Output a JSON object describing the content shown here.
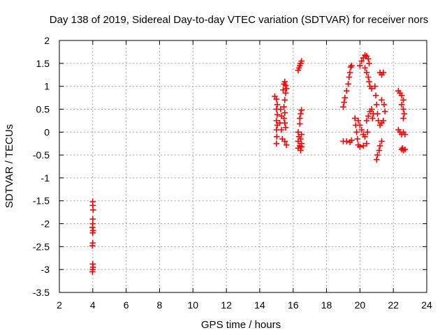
{
  "chart_data": {
    "type": "scatter",
    "title": "Day 138 of 2019, Sidereal Day-to-day VTEC variation (SDTVAR) for receiver nors",
    "xlabel": "GPS time / hours",
    "ylabel": "SDTVAR / TECUs",
    "xlim": [
      2,
      24
    ],
    "ylim": [
      -3.5,
      2
    ],
    "x_ticks": [
      "2",
      "4",
      "6",
      "8",
      "10",
      "12",
      "14",
      "16",
      "18",
      "20",
      "22",
      "24"
    ],
    "y_ticks": [
      "2",
      "1.5",
      "1",
      "0.5",
      "0",
      "-0.5",
      "-1",
      "-1.5",
      "-2",
      "-2.5",
      "-3",
      "-3.5"
    ],
    "grid": true,
    "marker": "plus",
    "color": "#ff0000",
    "series": [
      {
        "name": "SDTVAR",
        "points": [
          [
            4.0,
            -1.52
          ],
          [
            4.0,
            -1.6
          ],
          [
            4.02,
            -1.7
          ],
          [
            4.0,
            -1.9
          ],
          [
            4.0,
            -2.0
          ],
          [
            3.98,
            -2.08
          ],
          [
            4.02,
            -2.15
          ],
          [
            4.0,
            -2.2
          ],
          [
            4.0,
            -2.42
          ],
          [
            3.98,
            -2.48
          ],
          [
            4.0,
            -2.88
          ],
          [
            4.02,
            -2.95
          ],
          [
            4.0,
            -3.0
          ],
          [
            3.98,
            -3.05
          ],
          [
            14.9,
            0.78
          ],
          [
            15.0,
            0.72
          ],
          [
            15.05,
            0.6
          ],
          [
            15.0,
            0.5
          ],
          [
            15.05,
            0.38
          ],
          [
            15.0,
            0.25
          ],
          [
            15.05,
            0.15
          ],
          [
            15.0,
            0.05
          ],
          [
            15.02,
            -0.1
          ],
          [
            15.0,
            -0.25
          ],
          [
            15.25,
            0.5
          ],
          [
            15.3,
            0.35
          ],
          [
            15.2,
            0.2
          ],
          [
            15.3,
            0.05
          ],
          [
            15.35,
            -0.15
          ],
          [
            15.5,
            -0.2
          ],
          [
            15.6,
            -0.28
          ],
          [
            15.4,
            0.92
          ],
          [
            15.45,
            1.05
          ],
          [
            15.5,
            1.1
          ],
          [
            15.55,
            1.02
          ],
          [
            15.6,
            0.95
          ],
          [
            15.55,
            0.85
          ],
          [
            15.5,
            0.7
          ],
          [
            15.45,
            0.55
          ],
          [
            15.5,
            0.42
          ],
          [
            15.45,
            0.3
          ],
          [
            15.5,
            0.2
          ],
          [
            15.55,
            0.1
          ],
          [
            16.3,
            1.35
          ],
          [
            16.35,
            1.4
          ],
          [
            16.4,
            1.45
          ],
          [
            16.45,
            1.5
          ],
          [
            16.5,
            1.55
          ],
          [
            16.5,
            0.48
          ],
          [
            16.45,
            0.4
          ],
          [
            16.4,
            0.3
          ],
          [
            16.4,
            0.18
          ],
          [
            16.3,
            0.0
          ],
          [
            16.35,
            -0.1
          ],
          [
            16.3,
            -0.2
          ],
          [
            16.4,
            -0.3
          ],
          [
            16.3,
            -0.35
          ],
          [
            16.45,
            -0.4
          ],
          [
            16.5,
            -0.32
          ],
          [
            16.5,
            -0.25
          ],
          [
            16.45,
            -0.15
          ],
          [
            16.5,
            -0.05
          ],
          [
            19.0,
            0.55
          ],
          [
            19.05,
            0.65
          ],
          [
            19.1,
            0.75
          ],
          [
            19.2,
            0.9
          ],
          [
            19.3,
            1.05
          ],
          [
            19.35,
            1.2
          ],
          [
            19.4,
            1.3
          ],
          [
            19.45,
            1.42
          ],
          [
            19.5,
            1.45
          ],
          [
            19.0,
            -0.2
          ],
          [
            19.2,
            -0.2
          ],
          [
            19.4,
            -0.22
          ],
          [
            19.5,
            -0.18
          ],
          [
            19.7,
            0.3
          ],
          [
            19.75,
            0.15
          ],
          [
            19.8,
            0.0
          ],
          [
            19.85,
            -0.15
          ],
          [
            19.9,
            -0.28
          ],
          [
            20.0,
            -0.32
          ],
          [
            20.2,
            -0.3
          ],
          [
            20.4,
            -0.25
          ],
          [
            19.9,
            0.25
          ],
          [
            20.0,
            0.15
          ],
          [
            20.1,
            0.05
          ],
          [
            20.2,
            -0.05
          ],
          [
            20.3,
            -0.1
          ],
          [
            20.45,
            0.0
          ],
          [
            20.0,
            1.45
          ],
          [
            20.1,
            1.55
          ],
          [
            20.2,
            1.62
          ],
          [
            20.3,
            1.68
          ],
          [
            20.4,
            1.66
          ],
          [
            20.5,
            1.6
          ],
          [
            20.55,
            1.5
          ],
          [
            20.3,
            1.4
          ],
          [
            20.4,
            1.3
          ],
          [
            20.5,
            1.2
          ],
          [
            20.55,
            1.1
          ],
          [
            20.6,
            1.0
          ],
          [
            20.7,
            0.95
          ],
          [
            20.9,
            1.0
          ],
          [
            20.95,
            0.8
          ],
          [
            21.0,
            0.6
          ],
          [
            21.05,
            0.4
          ],
          [
            21.1,
            0.25
          ],
          [
            21.2,
            0.15
          ],
          [
            21.2,
            1.3
          ],
          [
            21.3,
            1.25
          ],
          [
            21.4,
            1.3
          ],
          [
            20.4,
            0.25
          ],
          [
            20.5,
            0.35
          ],
          [
            20.6,
            0.45
          ],
          [
            20.7,
            0.5
          ],
          [
            20.8,
            0.4
          ],
          [
            20.75,
            0.3
          ],
          [
            21.0,
            -0.6
          ],
          [
            21.05,
            -0.5
          ],
          [
            21.15,
            -0.4
          ],
          [
            21.2,
            -0.3
          ],
          [
            21.3,
            -0.2
          ],
          [
            21.3,
            0.2
          ],
          [
            21.4,
            0.25
          ],
          [
            21.5,
            0.45
          ],
          [
            21.45,
            0.6
          ],
          [
            21.3,
            0.7
          ],
          [
            22.3,
            0.9
          ],
          [
            22.4,
            0.85
          ],
          [
            22.5,
            0.8
          ],
          [
            22.6,
            0.7
          ],
          [
            22.5,
            0.6
          ],
          [
            22.6,
            0.5
          ],
          [
            22.65,
            0.4
          ],
          [
            22.6,
            0.3
          ],
          [
            22.3,
            0.05
          ],
          [
            22.4,
            0.0
          ],
          [
            22.5,
            -0.05
          ],
          [
            22.6,
            0.0
          ],
          [
            22.7,
            -0.05
          ],
          [
            22.5,
            -0.38
          ],
          [
            22.6,
            -0.4
          ],
          [
            22.7,
            -0.38
          ],
          [
            22.55,
            -0.35
          ]
        ]
      }
    ]
  }
}
